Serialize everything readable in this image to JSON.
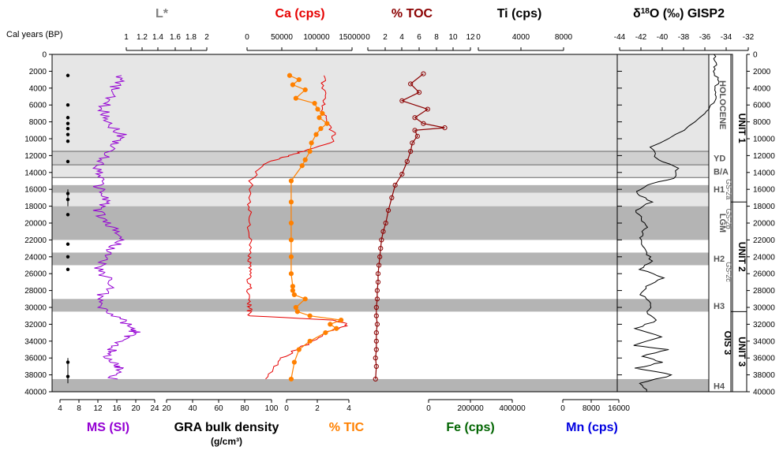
{
  "chart_data": {
    "type": "line",
    "y_axis": {
      "label": "Cal years (BP)",
      "ylim": [
        0,
        40000
      ],
      "ticks": [
        0,
        2000,
        4000,
        6000,
        8000,
        10000,
        12000,
        14000,
        16000,
        18000,
        20000,
        22000,
        24000,
        26000,
        28000,
        30000,
        32000,
        34000,
        36000,
        38000,
        40000
      ],
      "inverted": true
    },
    "zones": [
      {
        "name": "Holocene",
        "from": 0,
        "to": 11500,
        "shade": "light"
      },
      {
        "name": "YD",
        "from": 11500,
        "to": 13100,
        "shade": "medium"
      },
      {
        "name": "B/A",
        "from": 13100,
        "to": 14600,
        "shade": "light"
      },
      {
        "name": "H1",
        "from": 15500,
        "to": 16400,
        "shade": "dark"
      },
      {
        "name": "LGM",
        "from": 18000,
        "to": 22000,
        "shade": "dark"
      },
      {
        "name": "H2",
        "from": 23500,
        "to": 25000,
        "shade": "dark"
      },
      {
        "name": "H3",
        "from": 29000,
        "to": 30500,
        "shade": "dark"
      },
      {
        "name": "H4",
        "from": 38500,
        "to": 40000,
        "shade": "dark"
      }
    ],
    "zone_labels": [
      {
        "text": "HOLOCENE",
        "at": 6000,
        "vertical": true
      },
      {
        "text": "YD",
        "at": 12300
      },
      {
        "text": "B/A",
        "at": 13900
      },
      {
        "text": "H1",
        "at": 16000
      },
      {
        "text": "GS-2a",
        "at": 16000,
        "vertical": true,
        "small": true
      },
      {
        "text": "LGM",
        "at": 20000,
        "vertical": true
      },
      {
        "text": "GS-2b",
        "at": 19500,
        "vertical": true,
        "small": true
      },
      {
        "text": "H2",
        "at": 24200
      },
      {
        "text": "GS-2c",
        "at": 25800,
        "vertical": true,
        "small": true
      },
      {
        "text": "H3",
        "at": 29800
      },
      {
        "text": "H4",
        "at": 39300
      }
    ],
    "units": [
      {
        "label": "UNIT 1",
        "from": 0,
        "to": 17500
      },
      {
        "label": "UNIT 2",
        "from": 17500,
        "to": 30500
      },
      {
        "label": "UNIT 3",
        "from": 30500,
        "to": 40000
      }
    ],
    "ois_label": "OIS 3",
    "bottom_axis": {
      "ticks": [
        {
          "value": "4",
          "x_data": 4
        },
        {
          "value": "8"
        },
        {
          "value": "12"
        },
        {
          "value": "16"
        },
        {
          "value": "20"
        },
        {
          "value": "24"
        },
        {
          "value": "20"
        },
        {
          "value": "40"
        },
        {
          "value": "60"
        },
        {
          "value": "80"
        },
        {
          "value": "100"
        },
        {
          "value": "0"
        },
        {
          "value": "2"
        },
        {
          "value": "4"
        },
        {
          "value": "6"
        },
        {
          "value": "8"
        },
        {
          "value": "0"
        },
        {
          "value": "200000"
        },
        {
          "value": "400000"
        },
        {
          "value": "0"
        },
        {
          "value": "8000"
        },
        {
          "value": "16000"
        }
      ]
    },
    "series": [
      {
        "name": "MS (SI)",
        "color": "#9400d3",
        "position": "bottom",
        "unit_label": "",
        "xlim": [
          4,
          24
        ],
        "ticks": [
          "4",
          "8",
          "12",
          "16",
          "20",
          "24"
        ],
        "x": [
          17,
          16,
          15,
          14,
          13,
          14,
          15,
          17,
          16,
          14,
          13,
          12,
          13,
          12,
          13,
          14,
          12,
          13,
          15,
          17,
          16,
          14,
          13,
          12,
          14,
          15,
          13,
          12,
          14,
          17,
          19,
          20,
          18,
          16,
          15,
          14,
          15,
          16,
          17,
          15
        ],
        "y": [
          2500,
          3500,
          4500,
          5500,
          6500,
          7500,
          8500,
          9500,
          10500,
          11500,
          12500,
          13500,
          14500,
          15500,
          16500,
          17500,
          18500,
          19500,
          20500,
          21500,
          22500,
          23500,
          24500,
          25500,
          26500,
          27500,
          28500,
          29500,
          30500,
          31500,
          32500,
          33000,
          33500,
          34500,
          35000,
          35500,
          36500,
          37000,
          37500,
          38500
        ]
      },
      {
        "name": "L*",
        "color": "#808080",
        "position": "top",
        "xlim": [
          1,
          2
        ],
        "ticks": [
          "1",
          "1.2",
          "1.4",
          "1.6",
          "1.8",
          "2"
        ]
      },
      {
        "name": "GRA bulk density",
        "color": "#000000",
        "position": "bottom",
        "unit_label": "(g/cm³)",
        "xlim": [
          20,
          100
        ],
        "ticks": [
          "20",
          "40",
          "60",
          "80",
          "100"
        ]
      },
      {
        "name": "Ca (cps)",
        "color": "#e60000",
        "position": "top",
        "xlim": [
          0,
          150000
        ],
        "ticks": [
          "0",
          "50000",
          "100000",
          "150000"
        ],
        "x": [
          110000,
          108000,
          112000,
          105000,
          115000,
          118000,
          125000,
          120000,
          80000,
          60000,
          40000,
          20000,
          5000,
          4000,
          4000,
          3500,
          3000,
          3000,
          3000,
          3000,
          3000,
          3000,
          3000,
          3000,
          3000,
          3500,
          3500,
          120000,
          145000,
          130000,
          110000,
          95000,
          70000,
          50000,
          40000,
          30000
        ],
        "y": [
          2500,
          4000,
          5500,
          6500,
          7500,
          8500,
          9500,
          10500,
          11500,
          12000,
          12500,
          13200,
          15000,
          17500,
          19000,
          20500,
          22000,
          23500,
          24500,
          25500,
          26500,
          27500,
          28500,
          29500,
          30000,
          30500,
          31000,
          31500,
          32000,
          32500,
          33000,
          34000,
          35000,
          36000,
          37000,
          38500
        ]
      },
      {
        "name": "% TIC",
        "color": "#ff8000",
        "position": "bottom",
        "xlim": [
          0,
          4
        ],
        "ticks": [
          "0",
          "2",
          "4"
        ],
        "x": [
          0.2,
          0.8,
          0.4,
          1.2,
          0.6,
          1.8,
          2.0,
          2.3,
          2.1,
          2.6,
          2.2,
          1.9,
          1.6,
          1.5,
          1.2,
          1.0,
          0.3,
          0.3,
          0.3,
          0.3,
          0.3,
          0.3,
          0.4,
          0.4,
          0.5,
          1.2,
          0.6,
          0.7,
          1.5,
          3.5,
          2.8,
          3.2,
          2.5,
          1.5,
          0.8,
          0.5,
          0.3
        ],
        "y": [
          2500,
          3000,
          3600,
          4200,
          5200,
          5800,
          6500,
          7000,
          7500,
          8200,
          8800,
          9500,
          10500,
          11500,
          12500,
          13200,
          15000,
          17500,
          20000,
          22000,
          24000,
          26000,
          27500,
          28000,
          28500,
          29000,
          30000,
          30500,
          31000,
          31500,
          32000,
          32500,
          33000,
          34000,
          35000,
          36500,
          38500
        ]
      },
      {
        "name": "% TOC",
        "color": "#8b0000",
        "position": "top",
        "xlim": [
          0,
          12
        ],
        "ticks": [
          "0",
          "2",
          "4",
          "6",
          "8",
          "10",
          "12"
        ],
        "x": [
          6.5,
          5.0,
          6.0,
          4.0,
          7.0,
          5.5,
          6.5,
          9.0,
          5.5,
          5.8,
          5.2,
          5.0,
          4.6,
          4.0,
          3.2,
          2.8,
          2.4,
          2.1,
          1.8,
          1.6,
          1.5,
          1.4,
          1.3,
          1.2,
          1.2,
          1.1,
          1.1,
          1.0,
          1.0,
          1.1,
          1.0,
          1.0,
          1.0,
          0.9,
          1.0,
          0.9
        ],
        "y": [
          2300,
          3500,
          4500,
          5500,
          6500,
          7500,
          8200,
          8700,
          9000,
          9700,
          10500,
          11500,
          12700,
          14200,
          15500,
          17000,
          18500,
          20000,
          21000,
          22000,
          23000,
          24000,
          25000,
          26000,
          27000,
          28000,
          29000,
          30000,
          31000,
          32000,
          33000,
          34000,
          35000,
          36000,
          37000,
          38500
        ]
      },
      {
        "name": "Fe (cps)",
        "color": "#006400",
        "position": "bottom",
        "xlim": [
          0,
          400000
        ],
        "ticks": [
          "0",
          "200000",
          "400000"
        ]
      },
      {
        "name": "Ti (cps)",
        "color": "#000000",
        "position": "top",
        "xlim": [
          0,
          8000
        ],
        "ticks": [
          "0",
          "4000",
          "8000"
        ]
      },
      {
        "name": "Mn (cps)",
        "color": "#0000e0",
        "position": "bottom",
        "xlim": [
          0,
          16000
        ],
        "ticks": [
          "0",
          "8000",
          "16000"
        ]
      },
      {
        "name": "δ18O (‰) GISP2",
        "color": "#000000",
        "position": "top",
        "xlim": [
          -44,
          -32
        ],
        "ticks": [
          "-44",
          "-42",
          "-40",
          "-38",
          "-36",
          "-34",
          "-32"
        ],
        "x": [
          -35.2,
          -35.0,
          -35.3,
          -34.8,
          -35.1,
          -35.0,
          -35.4,
          -36.0,
          -38.0,
          -41.0,
          -40.5,
          -38.5,
          -39.0,
          -41.5,
          -42.5,
          -41.0,
          -42.5,
          -42.0,
          -41.5,
          -42.0,
          -41.8,
          -41.5,
          -41.0,
          -42.0,
          -40.0,
          -41.5,
          -42.0,
          -41.0,
          -41.5,
          -40.5,
          -42.5,
          -40.0,
          -42.8,
          -39.5,
          -42.0,
          -40.0,
          -42.5,
          -39.0,
          -42.0,
          -41.5
        ],
        "y": [
          0,
          1000,
          2000,
          3000,
          4000,
          5000,
          6000,
          7000,
          9000,
          11000,
          12500,
          13500,
          14700,
          15500,
          16500,
          17500,
          18500,
          19500,
          20500,
          21500,
          22500,
          23500,
          24500,
          25500,
          26500,
          27500,
          28500,
          29500,
          30500,
          31500,
          32500,
          33500,
          34500,
          35000,
          35800,
          36500,
          37200,
          38000,
          39000,
          40000
        ]
      }
    ]
  }
}
